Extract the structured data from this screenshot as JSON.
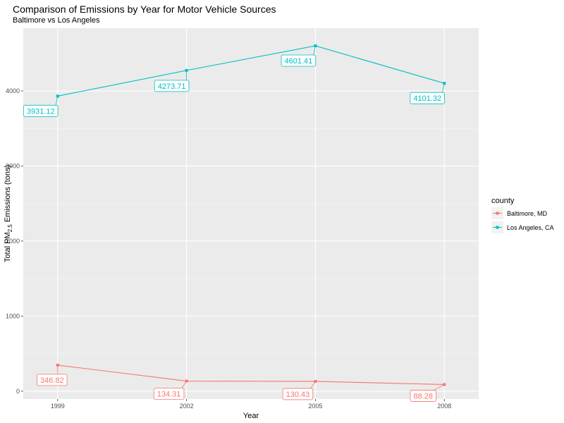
{
  "chart_data": {
    "type": "line",
    "title": "Comparison of Emissions by Year for Motor Vehicle Sources",
    "subtitle": "Baltimore vs Los Angeles",
    "xlabel": "Year",
    "ylabel": "Total PM2.5 Emissions (tons)",
    "ylabel_parts": {
      "prefix": "Total PM",
      "subscript": "2.5",
      "suffix": " Emissions (tons)"
    },
    "x": [
      1999,
      2002,
      2005,
      2008
    ],
    "x_tick_labels": [
      "1999",
      "2002",
      "2005",
      "2008"
    ],
    "xlim": [
      1998.2,
      2008.8
    ],
    "ylim": [
      -105,
      4836
    ],
    "y_ticks": [
      0,
      1000,
      2000,
      3000,
      4000
    ],
    "y_tick_labels": [
      "0",
      "1000",
      "2000",
      "3000",
      "4000"
    ],
    "grid": true,
    "legend": {
      "title": "county",
      "position": "right"
    },
    "series": [
      {
        "name": "Baltimore, MD",
        "color": "#F8766D",
        "values": [
          346.82,
          134.31,
          130.43,
          88.28
        ],
        "labels": [
          "346.82",
          "134.31",
          "130.43",
          "88.28"
        ]
      },
      {
        "name": "Los Angeles, CA",
        "color": "#00BFC4",
        "values": [
          3931.12,
          4273.71,
          4601.41,
          4101.32
        ],
        "labels": [
          "3931.12",
          "4273.71",
          "4601.41",
          "4101.32"
        ]
      }
    ]
  }
}
